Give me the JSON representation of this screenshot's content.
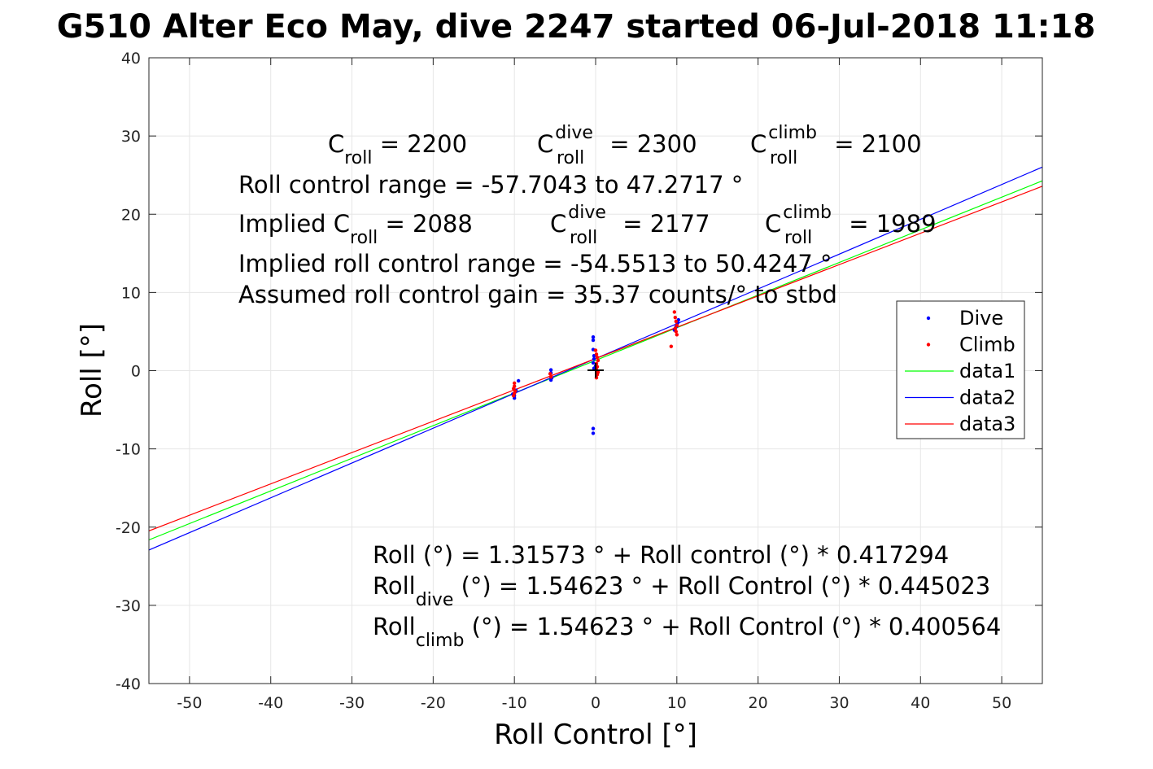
{
  "chart_data": {
    "type": "scatter",
    "title": "G510 Alter Eco May, dive 2247 started 06-Jul-2018 11:18",
    "xlabel": "Roll Control [°]",
    "ylabel": "Roll [°]",
    "xlim": [
      -55,
      55
    ],
    "ylim": [
      -40,
      40
    ],
    "x_ticks": [
      -50,
      -40,
      -30,
      -20,
      -10,
      0,
      10,
      20,
      30,
      40,
      50
    ],
    "y_ticks": [
      -40,
      -30,
      -20,
      -10,
      0,
      10,
      20,
      30,
      40
    ],
    "grid": true,
    "legend_placement": "right",
    "colors": {
      "dive": "#0000ff",
      "climb": "#ff0000",
      "data1": "#00ff00",
      "data2": "#0000ff",
      "data3": "#ff0000"
    },
    "scatter_series": [
      {
        "name": "Dive",
        "color": "#0000ff",
        "points": [
          [
            -10,
            -3.5
          ],
          [
            -10,
            -3.2
          ],
          [
            -10,
            -2.9
          ],
          [
            -9.8,
            -2.5
          ],
          [
            -9.5,
            -1.3
          ],
          [
            -10.2,
            -3.0
          ],
          [
            -5.5,
            0.1
          ],
          [
            -5.5,
            -0.3
          ],
          [
            -5.4,
            -0.9
          ],
          [
            -5.5,
            -1.2
          ],
          [
            -0.3,
            4.3
          ],
          [
            -0.3,
            3.9
          ],
          [
            -0.3,
            2.7
          ],
          [
            -0.2,
            1.9
          ],
          [
            -0.2,
            1.5
          ],
          [
            -0.3,
            1.0
          ],
          [
            0,
            0.6
          ],
          [
            -0.2,
            0.3
          ],
          [
            -0.3,
            -7.4
          ],
          [
            -0.3,
            -8.0
          ],
          [
            9.7,
            5.2
          ],
          [
            9.9,
            5.6
          ],
          [
            10.1,
            6.1
          ],
          [
            10.2,
            6.5
          ],
          [
            10.0,
            5.9
          ],
          [
            9.8,
            5.4
          ]
        ]
      },
      {
        "name": "Climb",
        "color": "#ff0000",
        "points": [
          [
            -10,
            -1.6
          ],
          [
            -10,
            -2.0
          ],
          [
            -10.1,
            -2.3
          ],
          [
            -9.9,
            -2.6
          ],
          [
            -10,
            -2.9
          ],
          [
            -10.1,
            -3.2
          ],
          [
            -5.6,
            -0.4
          ],
          [
            -5.5,
            -0.8
          ],
          [
            0,
            2.6
          ],
          [
            0.1,
            2.1
          ],
          [
            0.2,
            1.7
          ],
          [
            0.3,
            1.3
          ],
          [
            0.1,
            0.9
          ],
          [
            0.2,
            0.5
          ],
          [
            0.1,
            0.1
          ],
          [
            0.3,
            -0.2
          ],
          [
            0.2,
            -0.5
          ],
          [
            0.1,
            -0.9
          ],
          [
            9.7,
            7.5
          ],
          [
            9.8,
            6.8
          ],
          [
            9.9,
            6.3
          ],
          [
            10,
            5.8
          ],
          [
            9.8,
            5.4
          ],
          [
            9.9,
            5.0
          ],
          [
            10.0,
            4.6
          ],
          [
            9.3,
            3.1
          ]
        ]
      }
    ],
    "line_series": [
      {
        "name": "data1",
        "color": "#00ff00",
        "intercept": 1.31573,
        "slope": 0.417294
      },
      {
        "name": "data2",
        "color": "#0000ff",
        "intercept": 1.54623,
        "slope": 0.445023
      },
      {
        "name": "data3",
        "color": "#ff0000",
        "intercept": 1.54623,
        "slope": 0.400564
      }
    ],
    "zero_marker": [
      0,
      0
    ],
    "annotations": {
      "c_roll_base": "C",
      "c_roll_sub": "roll",
      "c_roll_value": " = 2200",
      "c_dive_base": "C",
      "c_dive_sup": "dive",
      "c_dive_sub": "roll",
      "c_dive_value": " = 2300",
      "c_climb_base": "C",
      "c_climb_sup": "climb",
      "c_climb_sub": "roll",
      "c_climb_value": " = 2100",
      "range_text": "Roll control range = -57.7043 to 47.2717 °",
      "implied_c_roll_prefix": "Implied C",
      "implied_c_roll_sub": "roll",
      "implied_c_roll_value": " = 2088",
      "implied_c_dive_base": "C",
      "implied_c_dive_sup": "dive",
      "implied_c_dive_sub": "roll",
      "implied_c_dive_value": " = 2177",
      "implied_c_climb_base": "C",
      "implied_c_climb_sup": "climb",
      "implied_c_climb_sub": "roll",
      "implied_c_climb_value": " = 1989",
      "implied_range_text": "Implied roll control range = -54.5513 to 50.4247 °",
      "gain_text": "Assumed roll control gain = 35.37 counts/° to stbd",
      "fit_all_text": "Roll (°) = 1.31573 ° + Roll control (°) * 0.417294",
      "fit_dive_base": "Roll",
      "fit_dive_sub": "dive",
      "fit_dive_rest": " (°) = 1.54623 ° + Roll Control (°) * 0.445023",
      "fit_climb_base": "Roll",
      "fit_climb_sub": "climb",
      "fit_climb_rest": " (°) = 1.54623 ° + Roll Control (°) * 0.400564"
    }
  }
}
